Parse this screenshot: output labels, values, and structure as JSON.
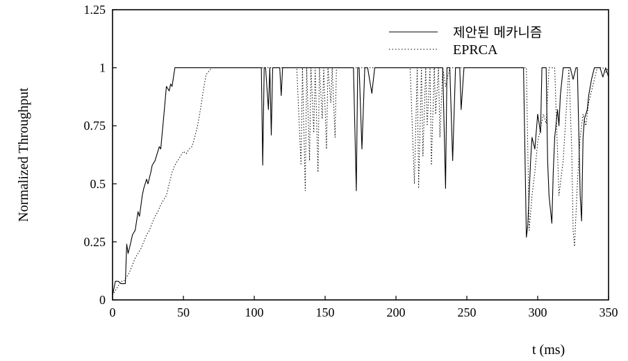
{
  "chart_data": {
    "type": "line",
    "title": "",
    "xlabel": "t (ms)",
    "ylabel": "Normalized Throughput",
    "xlim": [
      0,
      350
    ],
    "ylim": [
      0,
      1.25
    ],
    "x_ticks": [
      "0",
      "50",
      "100",
      "150",
      "200",
      "250",
      "300",
      "350"
    ],
    "y_ticks": [
      "0",
      "0.25",
      "0.5",
      "0.75",
      "1",
      "1.25"
    ],
    "grid": false,
    "legend_position": "top-right",
    "series": [
      {
        "name": "제안된 메카니즘",
        "style": "solid",
        "x": [
          0,
          2,
          4,
          6,
          9,
          10,
          11,
          13,
          14,
          16,
          18,
          19,
          21,
          22,
          24,
          25,
          27,
          28,
          30,
          31,
          33,
          34,
          36,
          37,
          38,
          40,
          41,
          42,
          43,
          44,
          45,
          50,
          60,
          80,
          105,
          106,
          107,
          108,
          110,
          111,
          112,
          113,
          115,
          118,
          119,
          120,
          125,
          170,
          172,
          173,
          174,
          176,
          178,
          179,
          180,
          183,
          185,
          186,
          187,
          190,
          233,
          235,
          236,
          237,
          238,
          240,
          242,
          243,
          245,
          246,
          248,
          250,
          251,
          252,
          253,
          290,
          292,
          293,
          295,
          296,
          298,
          300,
          302,
          303,
          305,
          306,
          307,
          308,
          310,
          311,
          312,
          314,
          315,
          316,
          318,
          320,
          323,
          325,
          327,
          328,
          330,
          331,
          332,
          333,
          335,
          336,
          338,
          340,
          342,
          344,
          346,
          348,
          350
        ],
        "y": [
          0.02,
          0.08,
          0.08,
          0.07,
          0.07,
          0.24,
          0.2,
          0.25,
          0.28,
          0.3,
          0.38,
          0.36,
          0.45,
          0.48,
          0.52,
          0.5,
          0.55,
          0.58,
          0.6,
          0.62,
          0.66,
          0.65,
          0.78,
          0.85,
          0.92,
          0.9,
          0.93,
          0.92,
          0.96,
          1.0,
          1.0,
          1.0,
          1.0,
          1.0,
          1.0,
          0.58,
          1.0,
          1.0,
          0.82,
          1.0,
          0.71,
          1.0,
          1.0,
          1.0,
          0.88,
          1.0,
          1.0,
          1.0,
          0.47,
          1.0,
          1.0,
          0.65,
          1.0,
          1.0,
          1.0,
          0.89,
          1.0,
          1.0,
          1.0,
          1.0,
          1.0,
          0.48,
          1.0,
          1.0,
          1.0,
          0.6,
          1.0,
          1.0,
          1.0,
          0.82,
          1.0,
          1.0,
          1.0,
          1.0,
          1.0,
          1.0,
          0.27,
          0.32,
          0.6,
          0.7,
          0.65,
          0.8,
          0.72,
          1.0,
          1.0,
          1.0,
          0.6,
          0.45,
          0.33,
          0.55,
          0.7,
          0.82,
          0.75,
          0.88,
          1.0,
          1.0,
          1.0,
          0.95,
          1.0,
          1.0,
          0.45,
          0.34,
          0.7,
          0.78,
          0.82,
          0.88,
          0.95,
          1.0,
          1.0,
          1.0,
          0.96,
          1.0,
          0.96
        ]
      },
      {
        "name": "EPRCA",
        "style": "dotted",
        "x": [
          0,
          2,
          4,
          6,
          8,
          10,
          12,
          14,
          16,
          18,
          20,
          22,
          24,
          26,
          28,
          30,
          32,
          34,
          36,
          38,
          40,
          42,
          44,
          46,
          48,
          50,
          52,
          54,
          56,
          58,
          60,
          62,
          64,
          66,
          70,
          100,
          130,
          133,
          134,
          136,
          137,
          139,
          140,
          142,
          143,
          145,
          146,
          148,
          149,
          151,
          152,
          154,
          155,
          157,
          158,
          160,
          210,
          213,
          215,
          216,
          218,
          219,
          221,
          222,
          224,
          225,
          227,
          228,
          230,
          231,
          233,
          235,
          238,
          290,
          292,
          294,
          296,
          298,
          300,
          302,
          304,
          306,
          308,
          310,
          312,
          315,
          318,
          320,
          322,
          324,
          325,
          326,
          328,
          330,
          332,
          334,
          336,
          338,
          340,
          342,
          344,
          346,
          348,
          350
        ],
        "y": [
          0.02,
          0.04,
          0.06,
          0.08,
          0.08,
          0.1,
          0.12,
          0.15,
          0.18,
          0.2,
          0.22,
          0.25,
          0.28,
          0.3,
          0.33,
          0.36,
          0.38,
          0.41,
          0.43,
          0.45,
          0.5,
          0.55,
          0.58,
          0.6,
          0.62,
          0.64,
          0.63,
          0.65,
          0.66,
          0.7,
          0.75,
          0.82,
          0.9,
          0.97,
          1.0,
          1.0,
          1.0,
          0.58,
          1.0,
          0.47,
          1.0,
          0.6,
          1.0,
          0.72,
          1.0,
          0.55,
          1.0,
          0.78,
          1.0,
          0.65,
          1.0,
          0.85,
          1.0,
          0.7,
          1.0,
          1.0,
          1.0,
          0.5,
          1.0,
          0.48,
          1.0,
          0.62,
          1.0,
          0.75,
          1.0,
          0.58,
          1.0,
          0.8,
          1.0,
          0.7,
          1.0,
          0.92,
          1.0,
          1.0,
          1.0,
          0.3,
          0.45,
          0.55,
          0.68,
          0.74,
          0.8,
          0.76,
          1.0,
          1.0,
          1.0,
          0.45,
          0.6,
          0.8,
          1.0,
          0.65,
          0.3,
          0.23,
          0.5,
          0.7,
          0.8,
          0.75,
          0.85,
          0.9,
          0.95,
          1.0,
          1.0,
          1.0,
          0.98,
          1.0
        ]
      }
    ]
  }
}
